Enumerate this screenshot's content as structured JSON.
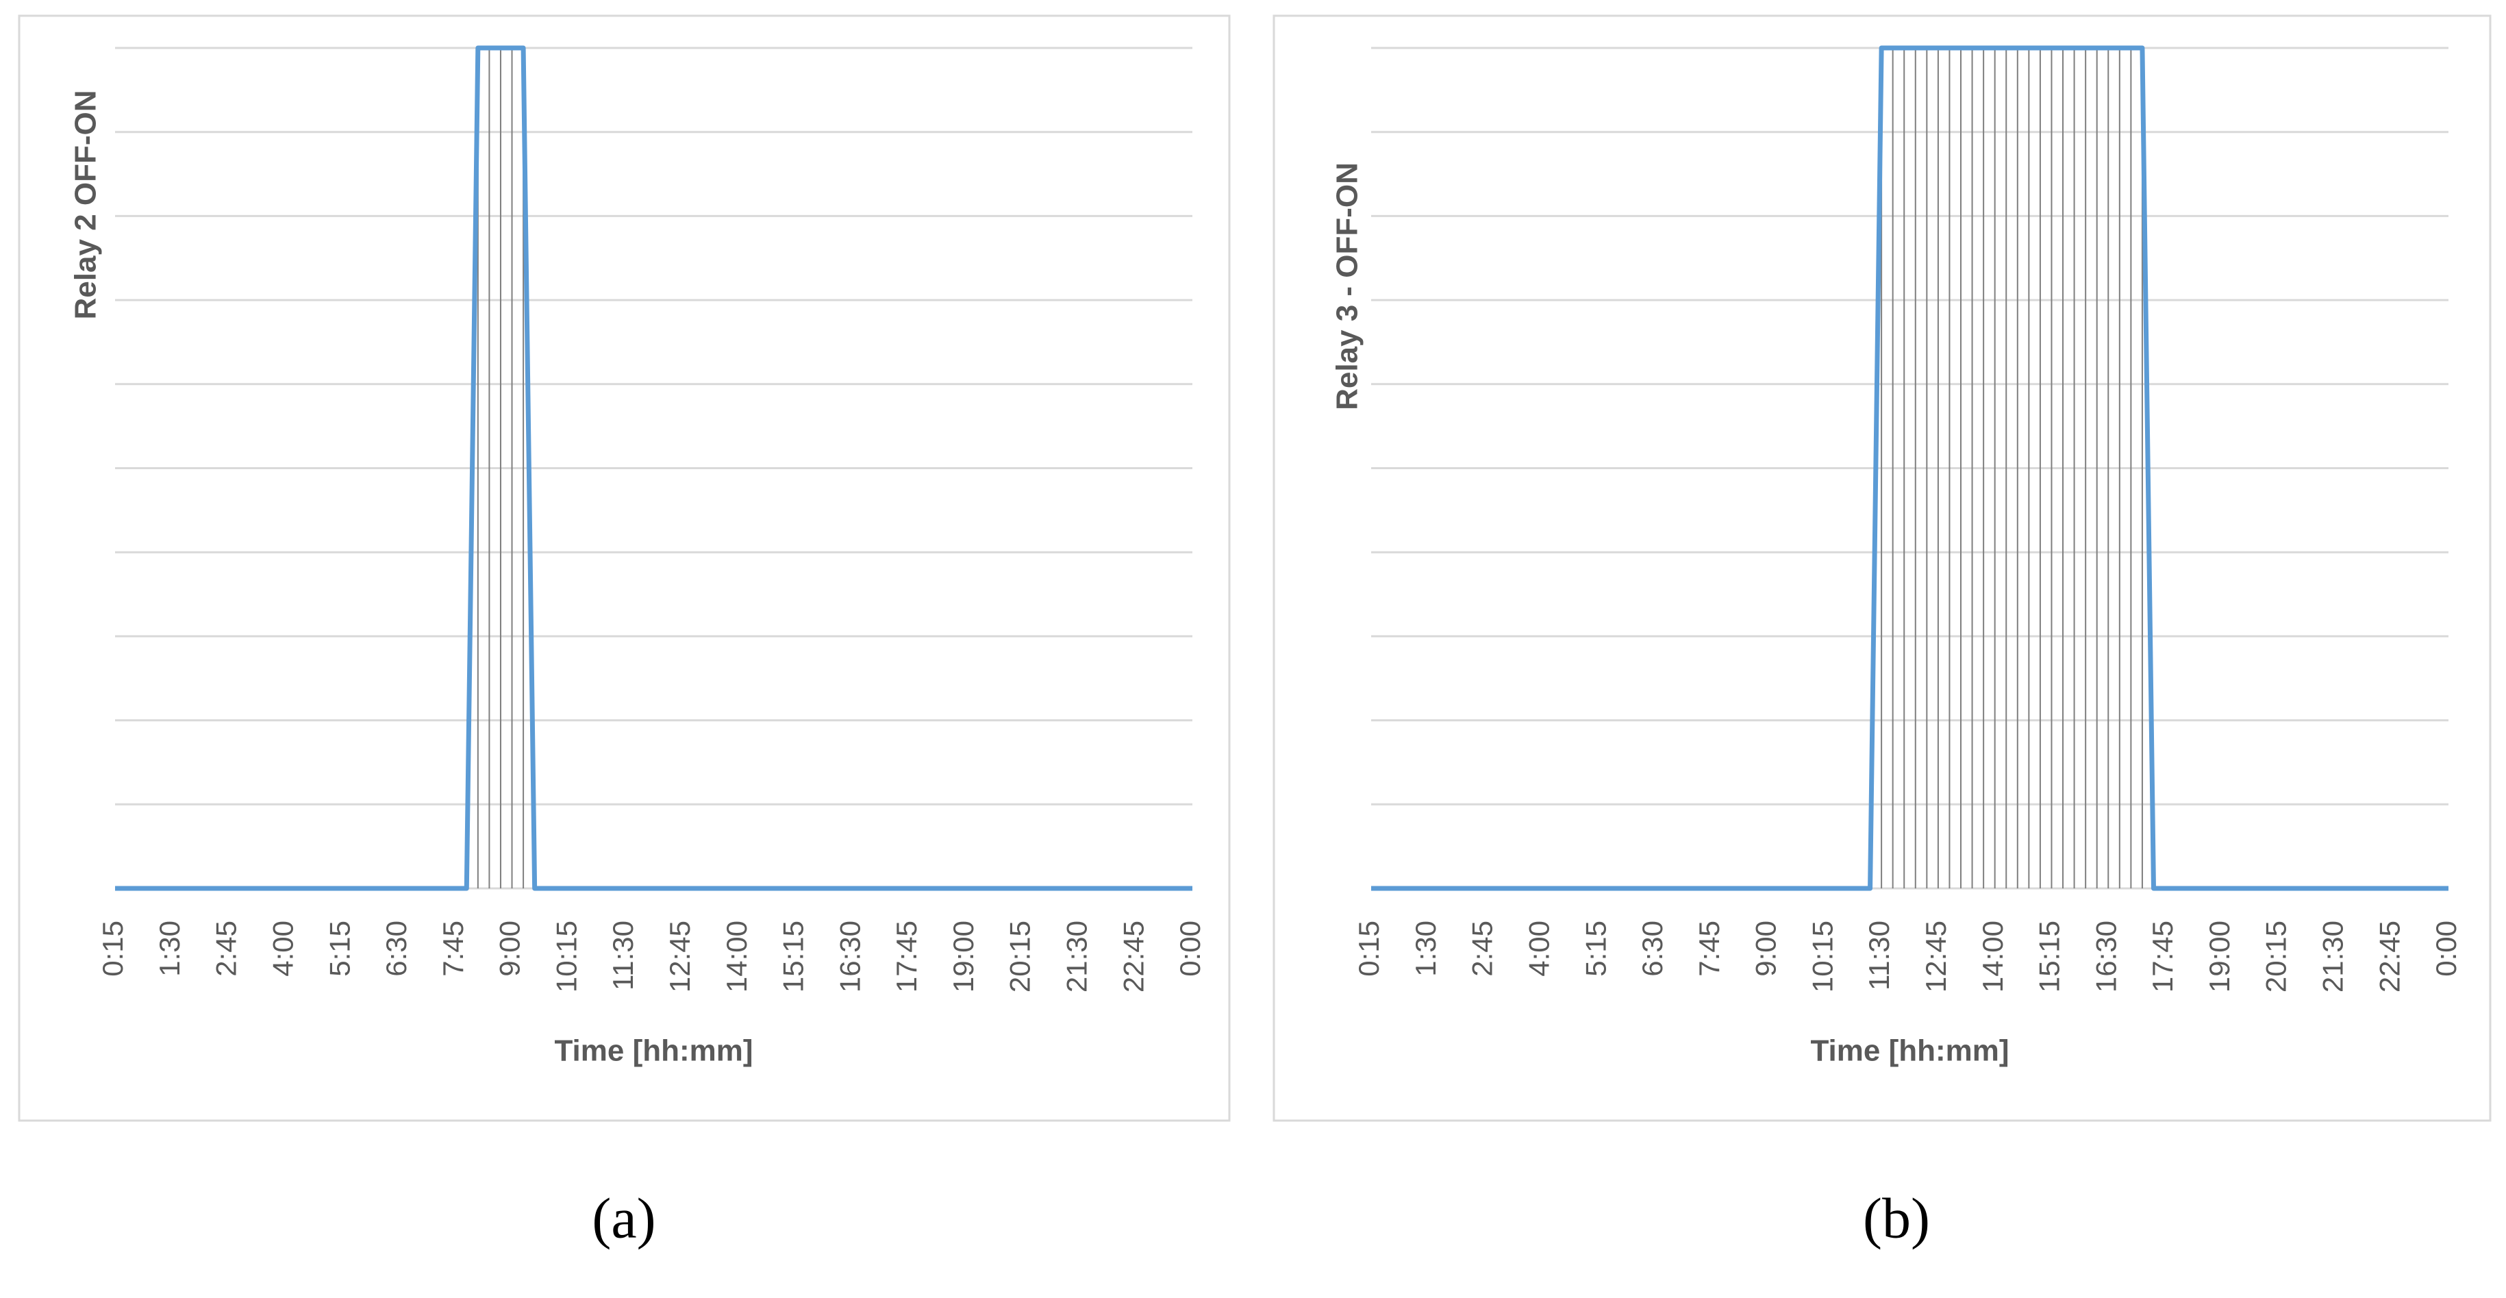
{
  "chart_data": [
    {
      "type": "line",
      "caption": "(a)",
      "x_label": "Time [hh:mm]",
      "y_label": "Relay 2 OFF-ON",
      "categories": [
        "0:15",
        null,
        null,
        null,
        null,
        "1:30",
        null,
        null,
        null,
        null,
        "2:45",
        null,
        null,
        null,
        null,
        "4:00",
        null,
        null,
        null,
        null,
        "5:15",
        null,
        null,
        null,
        null,
        "6:30",
        null,
        null,
        null,
        null,
        "7:45",
        null,
        null,
        null,
        null,
        "9:00",
        null,
        null,
        null,
        null,
        "10:15",
        null,
        null,
        null,
        null,
        "11:30",
        null,
        null,
        null,
        null,
        "12:45",
        null,
        null,
        null,
        null,
        "14:00",
        null,
        null,
        null,
        null,
        "15:15",
        null,
        null,
        null,
        null,
        "16:30",
        null,
        null,
        null,
        null,
        "17:45",
        null,
        null,
        null,
        null,
        "19:00",
        null,
        null,
        null,
        null,
        "20:15",
        null,
        null,
        null,
        null,
        "21:30",
        null,
        null,
        null,
        null,
        "22:45",
        null,
        null,
        null,
        null,
        "0:00"
      ],
      "values": [
        0,
        0,
        0,
        0,
        0,
        0,
        0,
        0,
        0,
        0,
        0,
        0,
        0,
        0,
        0,
        0,
        0,
        0,
        0,
        0,
        0,
        0,
        0,
        0,
        0,
        0,
        0,
        0,
        0,
        0,
        0,
        0,
        1,
        1,
        1,
        1,
        1,
        0,
        0,
        0,
        0,
        0,
        0,
        0,
        0,
        0,
        0,
        0,
        0,
        0,
        0,
        0,
        0,
        0,
        0,
        0,
        0,
        0,
        0,
        0,
        0,
        0,
        0,
        0,
        0,
        0,
        0,
        0,
        0,
        0,
        0,
        0,
        0,
        0,
        0,
        0,
        0,
        0,
        0,
        0,
        0,
        0,
        0,
        0,
        0,
        0,
        0,
        0,
        0,
        0,
        0,
        0,
        0,
        0,
        0,
        0
      ],
      "color": "#5b9bd5",
      "ylim": [
        0,
        1
      ],
      "yticks": [
        0,
        0.1,
        0.2,
        0.3,
        0.4,
        0.5,
        0.6,
        0.7,
        0.8,
        0.9,
        1
      ],
      "grid": true,
      "drop_lines": true
    },
    {
      "type": "line",
      "caption": "(b)",
      "x_label": "Time [hh:mm]",
      "y_label": "Relay 3 - OFF-ON",
      "categories": [
        "0:15",
        null,
        null,
        null,
        null,
        "1:30",
        null,
        null,
        null,
        null,
        "2:45",
        null,
        null,
        null,
        null,
        "4:00",
        null,
        null,
        null,
        null,
        "5:15",
        null,
        null,
        null,
        null,
        "6:30",
        null,
        null,
        null,
        null,
        "7:45",
        null,
        null,
        null,
        null,
        "9:00",
        null,
        null,
        null,
        null,
        "10:15",
        null,
        null,
        null,
        null,
        "11:30",
        null,
        null,
        null,
        null,
        "12:45",
        null,
        null,
        null,
        null,
        "14:00",
        null,
        null,
        null,
        null,
        "15:15",
        null,
        null,
        null,
        null,
        "16:30",
        null,
        null,
        null,
        null,
        "17:45",
        null,
        null,
        null,
        null,
        "19:00",
        null,
        null,
        null,
        null,
        "20:15",
        null,
        null,
        null,
        null,
        "21:30",
        null,
        null,
        null,
        null,
        "22:45",
        null,
        null,
        null,
        null,
        "0:00"
      ],
      "values": [
        0,
        0,
        0,
        0,
        0,
        0,
        0,
        0,
        0,
        0,
        0,
        0,
        0,
        0,
        0,
        0,
        0,
        0,
        0,
        0,
        0,
        0,
        0,
        0,
        0,
        0,
        0,
        0,
        0,
        0,
        0,
        0,
        0,
        0,
        0,
        0,
        0,
        0,
        0,
        0,
        0,
        0,
        0,
        0,
        0,
        1,
        1,
        1,
        1,
        1,
        1,
        1,
        1,
        1,
        1,
        1,
        1,
        1,
        1,
        1,
        1,
        1,
        1,
        1,
        1,
        1,
        1,
        1,
        1,
        0,
        0,
        0,
        0,
        0,
        0,
        0,
        0,
        0,
        0,
        0,
        0,
        0,
        0,
        0,
        0,
        0,
        0,
        0,
        0,
        0,
        0,
        0,
        0,
        0,
        0,
        0
      ],
      "color": "#5b9bd5",
      "ylim": [
        0,
        1
      ],
      "yticks": [
        0,
        0.1,
        0.2,
        0.3,
        0.4,
        0.5,
        0.6,
        0.7,
        0.8,
        0.9,
        1
      ],
      "grid": true,
      "drop_lines": true
    }
  ]
}
